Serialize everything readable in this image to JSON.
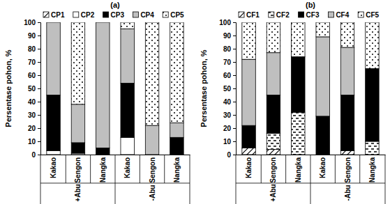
{
  "chart_data": [
    {
      "type": "bar",
      "stacked": true,
      "title": "(a)",
      "y_label": "Persentase pohon, %",
      "categories": [
        "Kakao",
        "Sengon",
        "Nangka",
        "Kakao",
        "Sengon",
        "Nangka"
      ],
      "groups": [
        "+Abu",
        "-Abu"
      ],
      "ylim": [
        0,
        100
      ],
      "yticks": [
        0,
        10,
        20,
        30,
        40,
        50,
        60,
        70,
        80,
        90,
        100
      ],
      "series": [
        {
          "name": "CP1",
          "color": "#ffffff",
          "marker": "hatch",
          "values": [
            0,
            0,
            0,
            0,
            0,
            0
          ]
        },
        {
          "name": "CP2",
          "color": "#ffffff",
          "values": [
            3,
            1,
            0,
            13,
            0,
            0
          ]
        },
        {
          "name": "CP3",
          "color": "#000000",
          "values": [
            42,
            8,
            5,
            41,
            0,
            13
          ]
        },
        {
          "name": "CP4",
          "color": "#bfbfbf",
          "values": [
            55,
            29,
            95,
            41,
            22,
            11
          ]
        },
        {
          "name": "CP5",
          "color": "#ffffff",
          "marker": "dots",
          "values": [
            0,
            62,
            0,
            5,
            78,
            76
          ]
        }
      ]
    },
    {
      "type": "bar",
      "stacked": true,
      "title": "(b)",
      "y_label": "Persentase pohon, %",
      "categories": [
        "Kakao",
        "Sengon",
        "Nangka",
        "Kakao",
        "Sengon",
        "Nangka"
      ],
      "groups": [
        "+Abu",
        "-Abu"
      ],
      "ylim": [
        0,
        100
      ],
      "yticks": [
        0,
        10,
        20,
        30,
        40,
        50,
        60,
        70,
        80,
        90,
        100
      ],
      "series": [
        {
          "name": "CF1",
          "color": "#ffffff",
          "marker": "hatch",
          "values": [
            5,
            4,
            0,
            0,
            3,
            0
          ]
        },
        {
          "name": "CF2",
          "color": "#ffffff",
          "marker": "dash",
          "values": [
            0,
            12,
            32,
            0,
            0,
            10
          ]
        },
        {
          "name": "CF3",
          "color": "#000000",
          "values": [
            17,
            29,
            42,
            29,
            42,
            55
          ]
        },
        {
          "name": "CF4",
          "color": "#bfbfbf",
          "values": [
            50,
            32,
            0,
            60,
            36,
            0
          ]
        },
        {
          "name": "CF5",
          "color": "#ffffff",
          "marker": "dots",
          "values": [
            28,
            23,
            26,
            11,
            19,
            35
          ]
        }
      ]
    }
  ]
}
